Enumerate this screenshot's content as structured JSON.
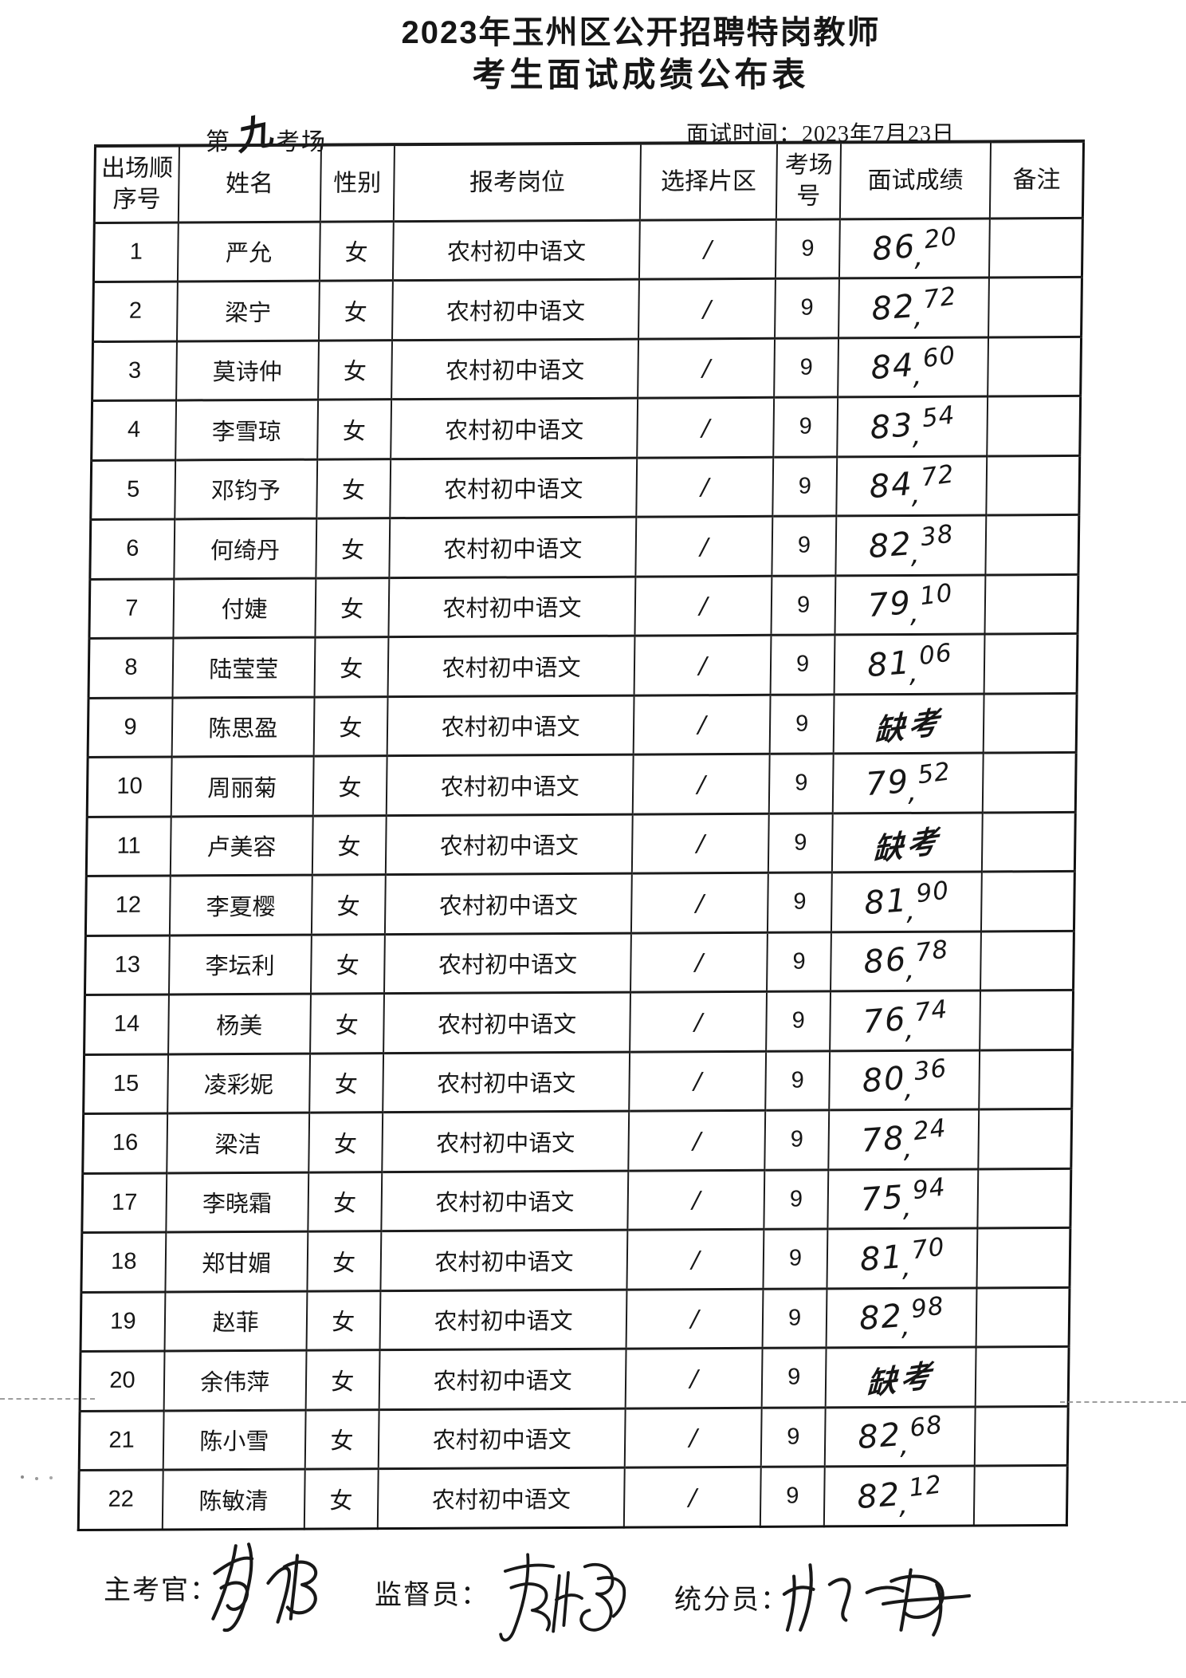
{
  "colors": {
    "ink": "#161616",
    "paper": "#ffffff",
    "fold_line": "#8d8d8d"
  },
  "title_line1": "2023年玉州区公开招聘特岗教师",
  "title_line2": "考生面试成绩公布表",
  "subheader": {
    "room_prefix": "第",
    "room_number": "九",
    "room_suffix": "考场",
    "interview_time": "面试时间：2023年7月23日"
  },
  "table": {
    "headers": [
      "出场顺序号",
      "姓名",
      "性别",
      "报考岗位",
      "选择片区",
      "考场号",
      "面试成绩",
      "备注"
    ],
    "rows": [
      {
        "no": "1",
        "name": "严允",
        "gender": "女",
        "position": "农村初中语文",
        "district": "/",
        "room": "9",
        "score": "86.20",
        "remark": ""
      },
      {
        "no": "2",
        "name": "梁宁",
        "gender": "女",
        "position": "农村初中语文",
        "district": "/",
        "room": "9",
        "score": "82.72",
        "remark": ""
      },
      {
        "no": "3",
        "name": "莫诗仲",
        "gender": "女",
        "position": "农村初中语文",
        "district": "/",
        "room": "9",
        "score": "84.60",
        "remark": ""
      },
      {
        "no": "4",
        "name": "李雪琼",
        "gender": "女",
        "position": "农村初中语文",
        "district": "/",
        "room": "9",
        "score": "83.54",
        "remark": ""
      },
      {
        "no": "5",
        "name": "邓钧予",
        "gender": "女",
        "position": "农村初中语文",
        "district": "/",
        "room": "9",
        "score": "84.72",
        "remark": ""
      },
      {
        "no": "6",
        "name": "何绮丹",
        "gender": "女",
        "position": "农村初中语文",
        "district": "/",
        "room": "9",
        "score": "82.38",
        "remark": ""
      },
      {
        "no": "7",
        "name": "付婕",
        "gender": "女",
        "position": "农村初中语文",
        "district": "/",
        "room": "9",
        "score": "79.10",
        "remark": ""
      },
      {
        "no": "8",
        "name": "陆莹莹",
        "gender": "女",
        "position": "农村初中语文",
        "district": "/",
        "room": "9",
        "score": "81.06",
        "remark": ""
      },
      {
        "no": "9",
        "name": "陈思盈",
        "gender": "女",
        "position": "农村初中语文",
        "district": "/",
        "room": "9",
        "score": "缺考",
        "remark": ""
      },
      {
        "no": "10",
        "name": "周丽菊",
        "gender": "女",
        "position": "农村初中语文",
        "district": "/",
        "room": "9",
        "score": "79.52",
        "remark": ""
      },
      {
        "no": "11",
        "name": "卢美容",
        "gender": "女",
        "position": "农村初中语文",
        "district": "/",
        "room": "9",
        "score": "缺考",
        "remark": ""
      },
      {
        "no": "12",
        "name": "李夏樱",
        "gender": "女",
        "position": "农村初中语文",
        "district": "/",
        "room": "9",
        "score": "81.90",
        "remark": ""
      },
      {
        "no": "13",
        "name": "李坛利",
        "gender": "女",
        "position": "农村初中语文",
        "district": "/",
        "room": "9",
        "score": "86.78",
        "remark": ""
      },
      {
        "no": "14",
        "name": "杨美",
        "gender": "女",
        "position": "农村初中语文",
        "district": "/",
        "room": "9",
        "score": "76.74",
        "remark": ""
      },
      {
        "no": "15",
        "name": "凌彩妮",
        "gender": "女",
        "position": "农村初中语文",
        "district": "/",
        "room": "9",
        "score": "80.36",
        "remark": ""
      },
      {
        "no": "16",
        "name": "梁洁",
        "gender": "女",
        "position": "农村初中语文",
        "district": "/",
        "room": "9",
        "score": "78.24",
        "remark": ""
      },
      {
        "no": "17",
        "name": "李晓霜",
        "gender": "女",
        "position": "农村初中语文",
        "district": "/",
        "room": "9",
        "score": "75.94",
        "remark": ""
      },
      {
        "no": "18",
        "name": "郑甘媚",
        "gender": "女",
        "position": "农村初中语文",
        "district": "/",
        "room": "9",
        "score": "81.70",
        "remark": ""
      },
      {
        "no": "19",
        "name": "赵菲",
        "gender": "女",
        "position": "农村初中语文",
        "district": "/",
        "room": "9",
        "score": "82.98",
        "remark": ""
      },
      {
        "no": "20",
        "name": "余伟萍",
        "gender": "女",
        "position": "农村初中语文",
        "district": "/",
        "room": "9",
        "score": "缺考",
        "remark": ""
      },
      {
        "no": "21",
        "name": "陈小雪",
        "gender": "女",
        "position": "农村初中语文",
        "district": "/",
        "room": "9",
        "score": "82.68",
        "remark": ""
      },
      {
        "no": "22",
        "name": "陈敏清",
        "gender": "女",
        "position": "农村初中语文",
        "district": "/",
        "room": "9",
        "score": "82.12",
        "remark": ""
      }
    ]
  },
  "footer": {
    "chief_label": "主考官：",
    "supervisor_label": "监督员：",
    "scorer_label": "统分员："
  }
}
